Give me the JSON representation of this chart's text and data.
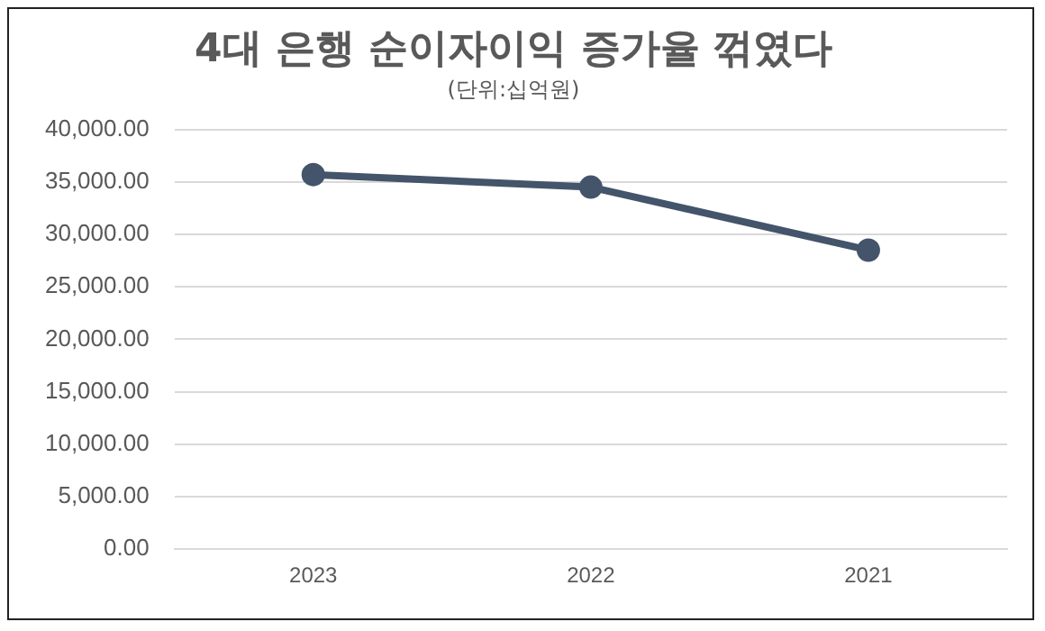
{
  "chart_data": {
    "type": "line",
    "title": "4대 은행 순이자이익 증가율 꺾였다",
    "subtitle": "(단위:십억원)",
    "categories": [
      "2023",
      "2022",
      "2021"
    ],
    "series": [
      {
        "color": "#44546a",
        "values": [
          35700,
          34500,
          28500
        ]
      }
    ],
    "ylim": [
      0,
      40000
    ],
    "yticks": [
      {
        "value": 0,
        "label": "0.00"
      },
      {
        "value": 5000,
        "label": "5,000.00"
      },
      {
        "value": 10000,
        "label": "10,000.00"
      },
      {
        "value": 15000,
        "label": "15,000.00"
      },
      {
        "value": 20000,
        "label": "20,000.00"
      },
      {
        "value": 25000,
        "label": "25,000.00"
      },
      {
        "value": 30000,
        "label": "30,000.00"
      },
      {
        "value": 35000,
        "label": "35,000.00"
      },
      {
        "value": 40000,
        "label": "40,000.00"
      }
    ],
    "grid": "y",
    "legend": false,
    "marker": "circle",
    "line_style": "solid"
  }
}
